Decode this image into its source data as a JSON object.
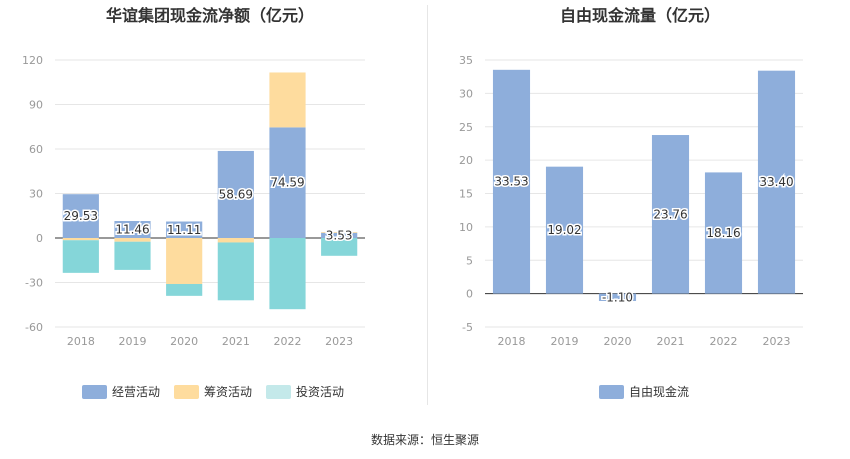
{
  "chart_data": [
    {
      "type": "bar",
      "stacked": true,
      "title": "华谊集团现金流净额（亿元）",
      "categories": [
        "2018",
        "2019",
        "2020",
        "2021",
        "2022",
        "2023"
      ],
      "series": [
        {
          "name": "经营活动",
          "color": "#8eaedb",
          "values": [
            29.53,
            11.46,
            11.11,
            58.69,
            74.59,
            3.53
          ]
        },
        {
          "name": "筹资活动",
          "color": "#fedc9e",
          "values": [
            -1.5,
            -2.5,
            -31,
            -3,
            37,
            0.5
          ]
        },
        {
          "name": "投资活动",
          "color": "#85d6d9",
          "values": [
            -22,
            -19,
            -8,
            -39,
            -48,
            -12
          ]
        }
      ],
      "data_labels": [
        "29.53",
        "11.46",
        "11.11",
        "58.69",
        "74.59",
        "3.53"
      ],
      "yticks": [
        "120",
        "90",
        "60",
        "30",
        "0",
        "-30",
        "-60"
      ],
      "ylim": [
        -60,
        120
      ],
      "grid": true,
      "legend_position": "bottom"
    },
    {
      "type": "bar",
      "title": "自由现金流量（亿元）",
      "categories": [
        "2018",
        "2019",
        "2020",
        "2021",
        "2022",
        "2023"
      ],
      "series": [
        {
          "name": "自由现金流",
          "color": "#8eaedb",
          "values": [
            33.53,
            19.02,
            -1.1,
            23.76,
            18.16,
            33.4
          ]
        }
      ],
      "data_labels": [
        "33.53",
        "19.02",
        "-1.10",
        "23.76",
        "18.16",
        "33.40"
      ],
      "yticks": [
        "35",
        "30",
        "25",
        "20",
        "15",
        "10",
        "5",
        "0",
        "-5"
      ],
      "ylim": [
        -5,
        35
      ],
      "grid": true,
      "legend_position": "bottom"
    }
  ],
  "footer": {
    "source": "数据来源：恒生聚源"
  }
}
